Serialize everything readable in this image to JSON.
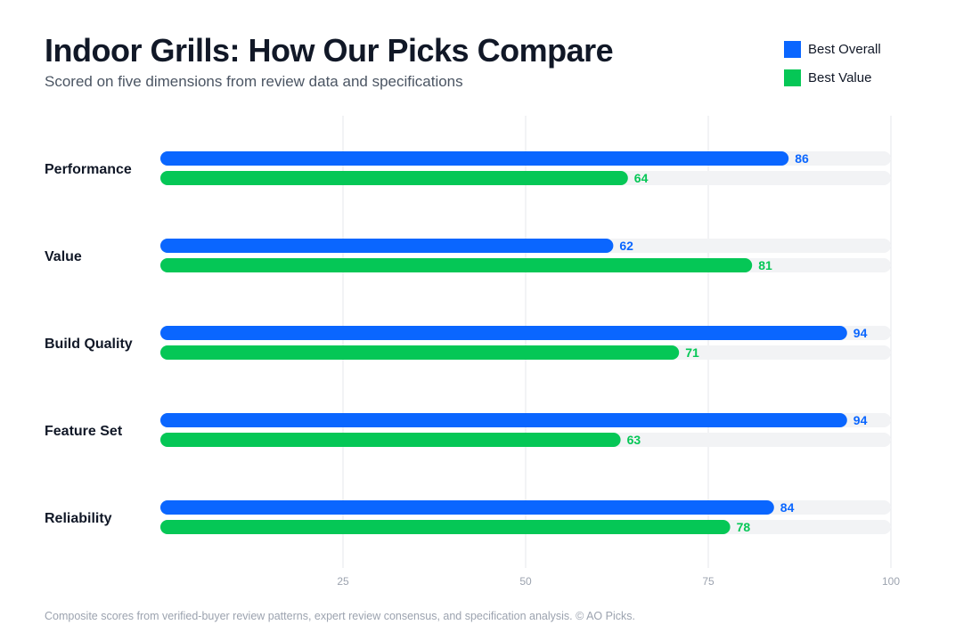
{
  "header": {
    "title": "Indoor Grills: How Our Picks Compare",
    "subtitle": "Scored on five dimensions from review data and specifications"
  },
  "legend": [
    {
      "label": "Best Overall",
      "color": "#0a66ff"
    },
    {
      "label": "Best Value",
      "color": "#05c756"
    }
  ],
  "footer": {
    "text": "Composite scores from verified-buyer review patterns, expert review consensus, and specification analysis. © AO Picks."
  },
  "chart_data": {
    "type": "bar",
    "orientation": "horizontal",
    "title": "Indoor Grills: How Our Picks Compare",
    "subtitle": "Scored on five dimensions from review data and specifications",
    "categories": [
      "Performance",
      "Value",
      "Build Quality",
      "Feature Set",
      "Reliability"
    ],
    "series": [
      {
        "name": "Best Overall",
        "color": "#0a66ff",
        "values": [
          86,
          62,
          94,
          94,
          84
        ]
      },
      {
        "name": "Best Value",
        "color": "#05c756",
        "values": [
          64,
          81,
          71,
          63,
          78
        ]
      }
    ],
    "xlim": [
      0,
      100
    ],
    "xticks": [
      25,
      50,
      75,
      100
    ],
    "grid": "vertical",
    "legend_position": "top-right",
    "track_color": "#f2f3f5",
    "grid_color": "#e5e7eb"
  }
}
